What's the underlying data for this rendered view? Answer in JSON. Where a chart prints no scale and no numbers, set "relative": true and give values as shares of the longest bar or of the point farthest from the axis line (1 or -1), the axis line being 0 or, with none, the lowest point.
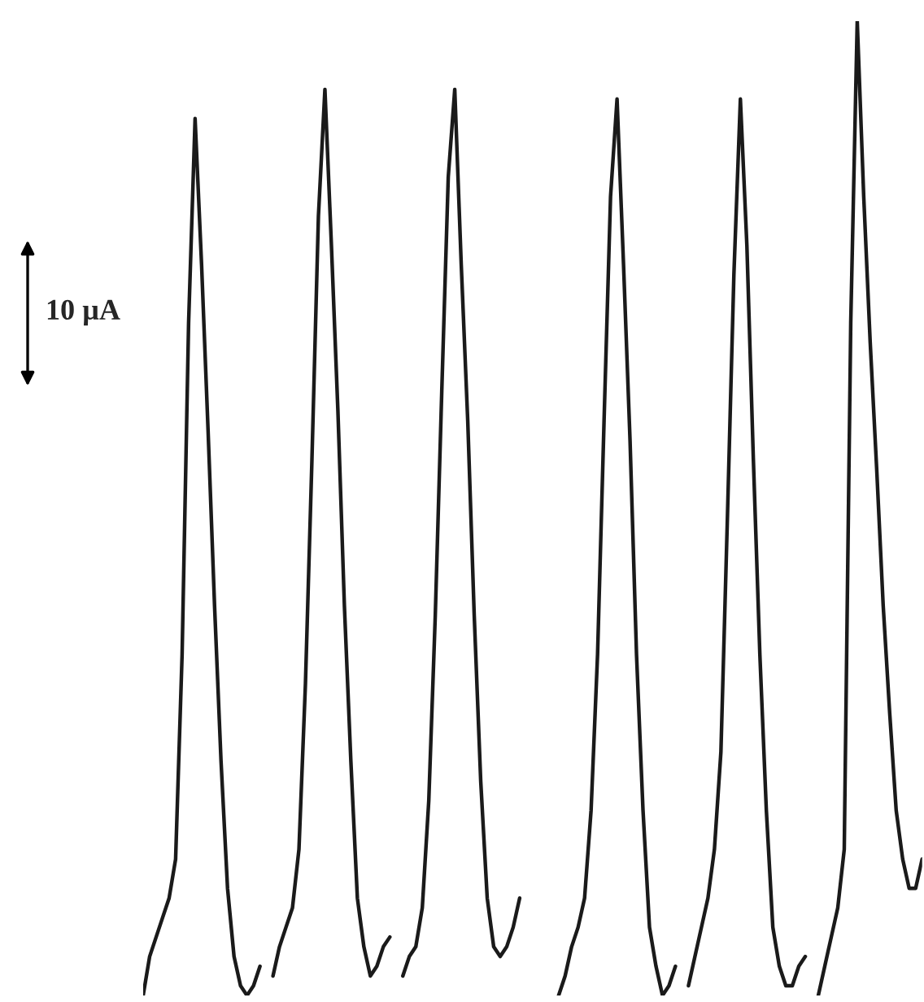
{
  "chart_data": {
    "type": "line",
    "relative": true,
    "categories": [
      null,
      null,
      null,
      null,
      null,
      null,
      null,
      null,
      null,
      null,
      null,
      null,
      null,
      null,
      null,
      null,
      null,
      null,
      null,
      null,
      null,
      null,
      null,
      null,
      null,
      null,
      null,
      null,
      null,
      null,
      null,
      null,
      null,
      null,
      null,
      null,
      null,
      null,
      null,
      null,
      null,
      null,
      null,
      null,
      null,
      null,
      null,
      null,
      null,
      null,
      null,
      null,
      null,
      null,
      null,
      null,
      null,
      null,
      null,
      null,
      null,
      null,
      null,
      null,
      null,
      null,
      null,
      null,
      null,
      null,
      null,
      null,
      null,
      null,
      null,
      null,
      null,
      null,
      null,
      null,
      null,
      null,
      null,
      null,
      null,
      null,
      null,
      null,
      null,
      null,
      null,
      null,
      null,
      null,
      null,
      null,
      null,
      null,
      null,
      null,
      null,
      null,
      null,
      null,
      null,
      null,
      null,
      null,
      null,
      null,
      null,
      null,
      null,
      null,
      null,
      null,
      null,
      null,
      null,
      null,
      null
    ],
    "series": [
      {
        "color": "#1a1a1a",
        "values": [
          0.0,
          0.04,
          0.06,
          0.08,
          0.1,
          0.14,
          0.35,
          0.69,
          0.9,
          0.75,
          0.58,
          0.4,
          0.24,
          0.11,
          0.04,
          0.01,
          0.0,
          0.01,
          0.03,
          null,
          null,
          null,
          null,
          null,
          null,
          null,
          null,
          null,
          null,
          null,
          null,
          null,
          null,
          null,
          null,
          null,
          null,
          null,
          null,
          null,
          null,
          null,
          null,
          null,
          null,
          null,
          null,
          null,
          null,
          null,
          null,
          null,
          null,
          null,
          null,
          null,
          null,
          null,
          null,
          null,
          null,
          null,
          null,
          null,
          null,
          null,
          null,
          null,
          null,
          null,
          null,
          null,
          null,
          null,
          null,
          null,
          null,
          null,
          null,
          null,
          null,
          null,
          null,
          null,
          null,
          null,
          null,
          null,
          null,
          null,
          null,
          null,
          null,
          null,
          null,
          null,
          null,
          null,
          null,
          null,
          null,
          null,
          null,
          null,
          null,
          null,
          null,
          null,
          null,
          null,
          null,
          null,
          null,
          null,
          null,
          null,
          null,
          null,
          null,
          null,
          null
        ]
      },
      {
        "color": "#1a1a1a",
        "values": [
          null,
          null,
          null,
          null,
          null,
          null,
          null,
          null,
          null,
          null,
          null,
          null,
          null,
          null,
          null,
          null,
          null,
          null,
          null,
          null,
          0.02,
          0.05,
          0.07,
          0.09,
          0.15,
          0.32,
          0.55,
          0.8,
          0.93,
          0.77,
          0.6,
          0.4,
          0.24,
          0.1,
          0.05,
          0.02,
          0.03,
          0.05,
          0.06,
          null,
          null,
          null,
          null,
          null,
          null,
          null,
          null,
          null,
          null,
          null,
          null,
          null,
          null,
          null,
          null,
          null,
          null,
          null,
          null,
          null,
          null,
          null,
          null,
          null,
          null,
          null,
          null,
          null,
          null,
          null,
          null,
          null,
          null,
          null,
          null,
          null,
          null,
          null,
          null,
          null,
          null,
          null,
          null,
          null,
          null,
          null,
          null,
          null,
          null,
          null,
          null,
          null,
          null,
          null,
          null,
          null,
          null,
          null,
          null,
          null,
          null,
          null,
          null,
          null,
          null,
          null,
          null,
          null,
          null,
          null,
          null,
          null,
          null,
          null,
          null,
          null,
          null,
          null,
          null,
          null,
          null
        ]
      },
      {
        "color": "#1a1a1a",
        "values": [
          null,
          null,
          null,
          null,
          null,
          null,
          null,
          null,
          null,
          null,
          null,
          null,
          null,
          null,
          null,
          null,
          null,
          null,
          null,
          null,
          null,
          null,
          null,
          null,
          null,
          null,
          null,
          null,
          null,
          null,
          null,
          null,
          null,
          null,
          null,
          null,
          null,
          null,
          null,
          null,
          0.02,
          0.04,
          0.05,
          0.09,
          0.2,
          0.39,
          0.62,
          0.84,
          0.93,
          0.75,
          0.59,
          0.39,
          0.22,
          0.1,
          0.05,
          0.04,
          0.05,
          0.07,
          0.1,
          null,
          null,
          null,
          null,
          null,
          null,
          null,
          null,
          null,
          null,
          null,
          null,
          null,
          null,
          null,
          null,
          null,
          null,
          null,
          null,
          null,
          null,
          null,
          null,
          null,
          null,
          null,
          null,
          null,
          null,
          null,
          null,
          null,
          null,
          null,
          null,
          null,
          null,
          null,
          null,
          null,
          null,
          null,
          null,
          null,
          null,
          null,
          null,
          null,
          null,
          null,
          null,
          null,
          null,
          null,
          null,
          null,
          null,
          null,
          null,
          null,
          null
        ]
      },
      {
        "color": "#1a1a1a",
        "values": [
          null,
          null,
          null,
          null,
          null,
          null,
          null,
          null,
          null,
          null,
          null,
          null,
          null,
          null,
          null,
          null,
          null,
          null,
          null,
          null,
          null,
          null,
          null,
          null,
          null,
          null,
          null,
          null,
          null,
          null,
          null,
          null,
          null,
          null,
          null,
          null,
          null,
          null,
          null,
          null,
          null,
          null,
          null,
          null,
          null,
          null,
          null,
          null,
          null,
          null,
          null,
          null,
          null,
          null,
          null,
          null,
          null,
          null,
          null,
          null,
          null,
          null,
          null,
          null,
          0.0,
          0.02,
          0.05,
          0.07,
          0.1,
          0.19,
          0.35,
          0.59,
          0.82,
          0.92,
          0.75,
          0.57,
          0.35,
          0.19,
          0.07,
          0.03,
          0.0,
          0.01,
          0.03,
          null,
          null,
          null,
          null,
          null,
          null,
          null,
          null,
          null,
          null,
          null,
          null,
          null,
          null,
          null,
          null,
          null,
          null,
          null,
          null,
          null,
          null,
          null,
          null,
          null,
          null,
          null,
          null,
          null,
          null,
          null,
          null,
          null,
          null,
          null,
          null,
          null,
          null
        ]
      },
      {
        "color": "#1a1a1a",
        "values": [
          null,
          null,
          null,
          null,
          null,
          null,
          null,
          null,
          null,
          null,
          null,
          null,
          null,
          null,
          null,
          null,
          null,
          null,
          null,
          null,
          null,
          null,
          null,
          null,
          null,
          null,
          null,
          null,
          null,
          null,
          null,
          null,
          null,
          null,
          null,
          null,
          null,
          null,
          null,
          null,
          null,
          null,
          null,
          null,
          null,
          null,
          null,
          null,
          null,
          null,
          null,
          null,
          null,
          null,
          null,
          null,
          null,
          null,
          null,
          null,
          null,
          null,
          null,
          null,
          null,
          null,
          null,
          null,
          null,
          null,
          null,
          null,
          null,
          null,
          null,
          null,
          null,
          null,
          null,
          null,
          null,
          null,
          null,
          null,
          0.01,
          0.04,
          0.07,
          0.1,
          0.15,
          0.25,
          0.49,
          0.74,
          0.92,
          0.77,
          0.55,
          0.35,
          0.19,
          0.07,
          0.03,
          0.01,
          0.01,
          0.03,
          0.04,
          null,
          null,
          null,
          null,
          null,
          null,
          null,
          null,
          null,
          null,
          null,
          null,
          null,
          null,
          null,
          null,
          null,
          null
        ]
      },
      {
        "color": "#1a1a1a",
        "values": [
          null,
          null,
          null,
          null,
          null,
          null,
          null,
          null,
          null,
          null,
          null,
          null,
          null,
          null,
          null,
          null,
          null,
          null,
          null,
          null,
          null,
          null,
          null,
          null,
          null,
          null,
          null,
          null,
          null,
          null,
          null,
          null,
          null,
          null,
          null,
          null,
          null,
          null,
          null,
          null,
          null,
          null,
          null,
          null,
          null,
          null,
          null,
          null,
          null,
          null,
          null,
          null,
          null,
          null,
          null,
          null,
          null,
          null,
          null,
          null,
          null,
          null,
          null,
          null,
          null,
          null,
          null,
          null,
          null,
          null,
          null,
          null,
          null,
          null,
          null,
          null,
          null,
          null,
          null,
          null,
          null,
          null,
          null,
          null,
          null,
          null,
          null,
          null,
          null,
          null,
          null,
          null,
          null,
          null,
          null,
          null,
          null,
          null,
          null,
          null,
          null,
          null,
          null,
          null,
          0.0,
          0.03,
          0.06,
          0.09,
          0.15,
          0.69,
          1.0,
          0.82,
          0.67,
          0.54,
          0.4,
          0.29,
          0.19,
          0.14,
          0.11,
          0.11,
          0.14
        ]
      }
    ],
    "line_style": "solid",
    "annotations": [
      "10 µA"
    ]
  }
}
